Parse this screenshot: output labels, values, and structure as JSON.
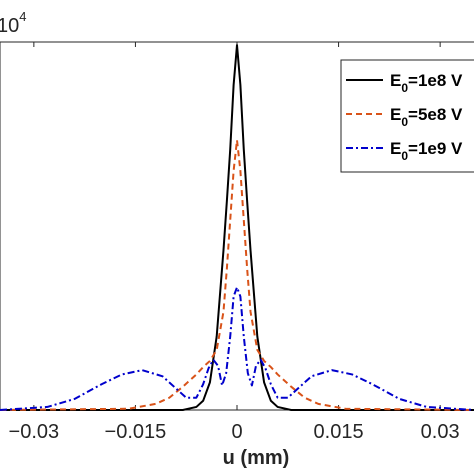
{
  "chart_data": {
    "type": "line",
    "title": "",
    "xlabel": "u (mm)",
    "ylabel": "",
    "xlim": [
      -0.035,
      0.035
    ],
    "ylim": [
      0,
      6
    ],
    "y_multiplier_label": "10",
    "y_multiplier_exponent": "4",
    "x_ticks": [
      -0.03,
      -0.015,
      0,
      0.015,
      0.03
    ],
    "x_tick_labels": [
      "−0.03",
      "−0.015",
      "0",
      "0.015",
      "0.03"
    ],
    "grid": false,
    "legend_position": "top-right",
    "series": [
      {
        "name": "E0=1e8 V",
        "legend_label": "E",
        "legend_sub": "0",
        "legend_rest": "=1e8 V",
        "color": "#000000",
        "style": "solid",
        "x": [
          -0.035,
          -0.008,
          -0.006,
          -0.005,
          -0.004,
          -0.003,
          -0.002,
          -0.0015,
          -0.001,
          -0.0005,
          0,
          0.0005,
          0.001,
          0.0015,
          0.002,
          0.003,
          0.004,
          0.005,
          0.006,
          0.008,
          0.035
        ],
        "y": [
          0,
          0,
          0.05,
          0.15,
          0.45,
          1.2,
          2.6,
          3.4,
          4.25,
          5.3,
          5.95,
          5.3,
          4.25,
          3.4,
          2.6,
          1.2,
          0.45,
          0.15,
          0.05,
          0,
          0
        ]
      },
      {
        "name": "E0=5e8 V",
        "legend_label": "E",
        "legend_sub": "0",
        "legend_rest": "=5e8 V",
        "color": "#d95319",
        "style": "dashed",
        "x": [
          -0.035,
          -0.016,
          -0.012,
          -0.01,
          -0.008,
          -0.006,
          -0.005,
          -0.004,
          -0.003,
          -0.002,
          -0.0015,
          -0.001,
          -0.0005,
          0,
          0.0005,
          0.001,
          0.0015,
          0.002,
          0.003,
          0.004,
          0.005,
          0.006,
          0.008,
          0.01,
          0.012,
          0.016,
          0.035
        ],
        "y": [
          0,
          0.02,
          0.1,
          0.2,
          0.38,
          0.58,
          0.7,
          0.8,
          0.98,
          1.6,
          2.3,
          3.1,
          3.9,
          4.4,
          3.9,
          3.1,
          2.3,
          1.6,
          0.98,
          0.8,
          0.7,
          0.58,
          0.38,
          0.2,
          0.1,
          0.02,
          0
        ]
      },
      {
        "name": "E0=1e9 V",
        "legend_label": "E",
        "legend_sub": "0",
        "legend_rest": "=1e9 V",
        "color": "#0000cc",
        "style": "dashdot",
        "x": [
          -0.035,
          -0.028,
          -0.024,
          -0.02,
          -0.017,
          -0.014,
          -0.011,
          -0.009,
          -0.0075,
          -0.006,
          -0.005,
          -0.0042,
          -0.0035,
          -0.0028,
          -0.0022,
          -0.0016,
          -0.001,
          -0.0005,
          0,
          0.0005,
          0.001,
          0.0016,
          0.0022,
          0.0028,
          0.0035,
          0.0042,
          0.005,
          0.006,
          0.0075,
          0.009,
          0.011,
          0.014,
          0.017,
          0.02,
          0.024,
          0.028,
          0.035
        ],
        "y": [
          0,
          0.05,
          0.18,
          0.42,
          0.58,
          0.65,
          0.55,
          0.35,
          0.2,
          0.2,
          0.42,
          0.68,
          0.82,
          0.72,
          0.4,
          0.6,
          1.2,
          1.85,
          2.0,
          1.85,
          1.2,
          0.6,
          0.4,
          0.72,
          0.82,
          0.68,
          0.42,
          0.2,
          0.2,
          0.35,
          0.55,
          0.65,
          0.58,
          0.42,
          0.18,
          0.05,
          0
        ]
      }
    ]
  }
}
